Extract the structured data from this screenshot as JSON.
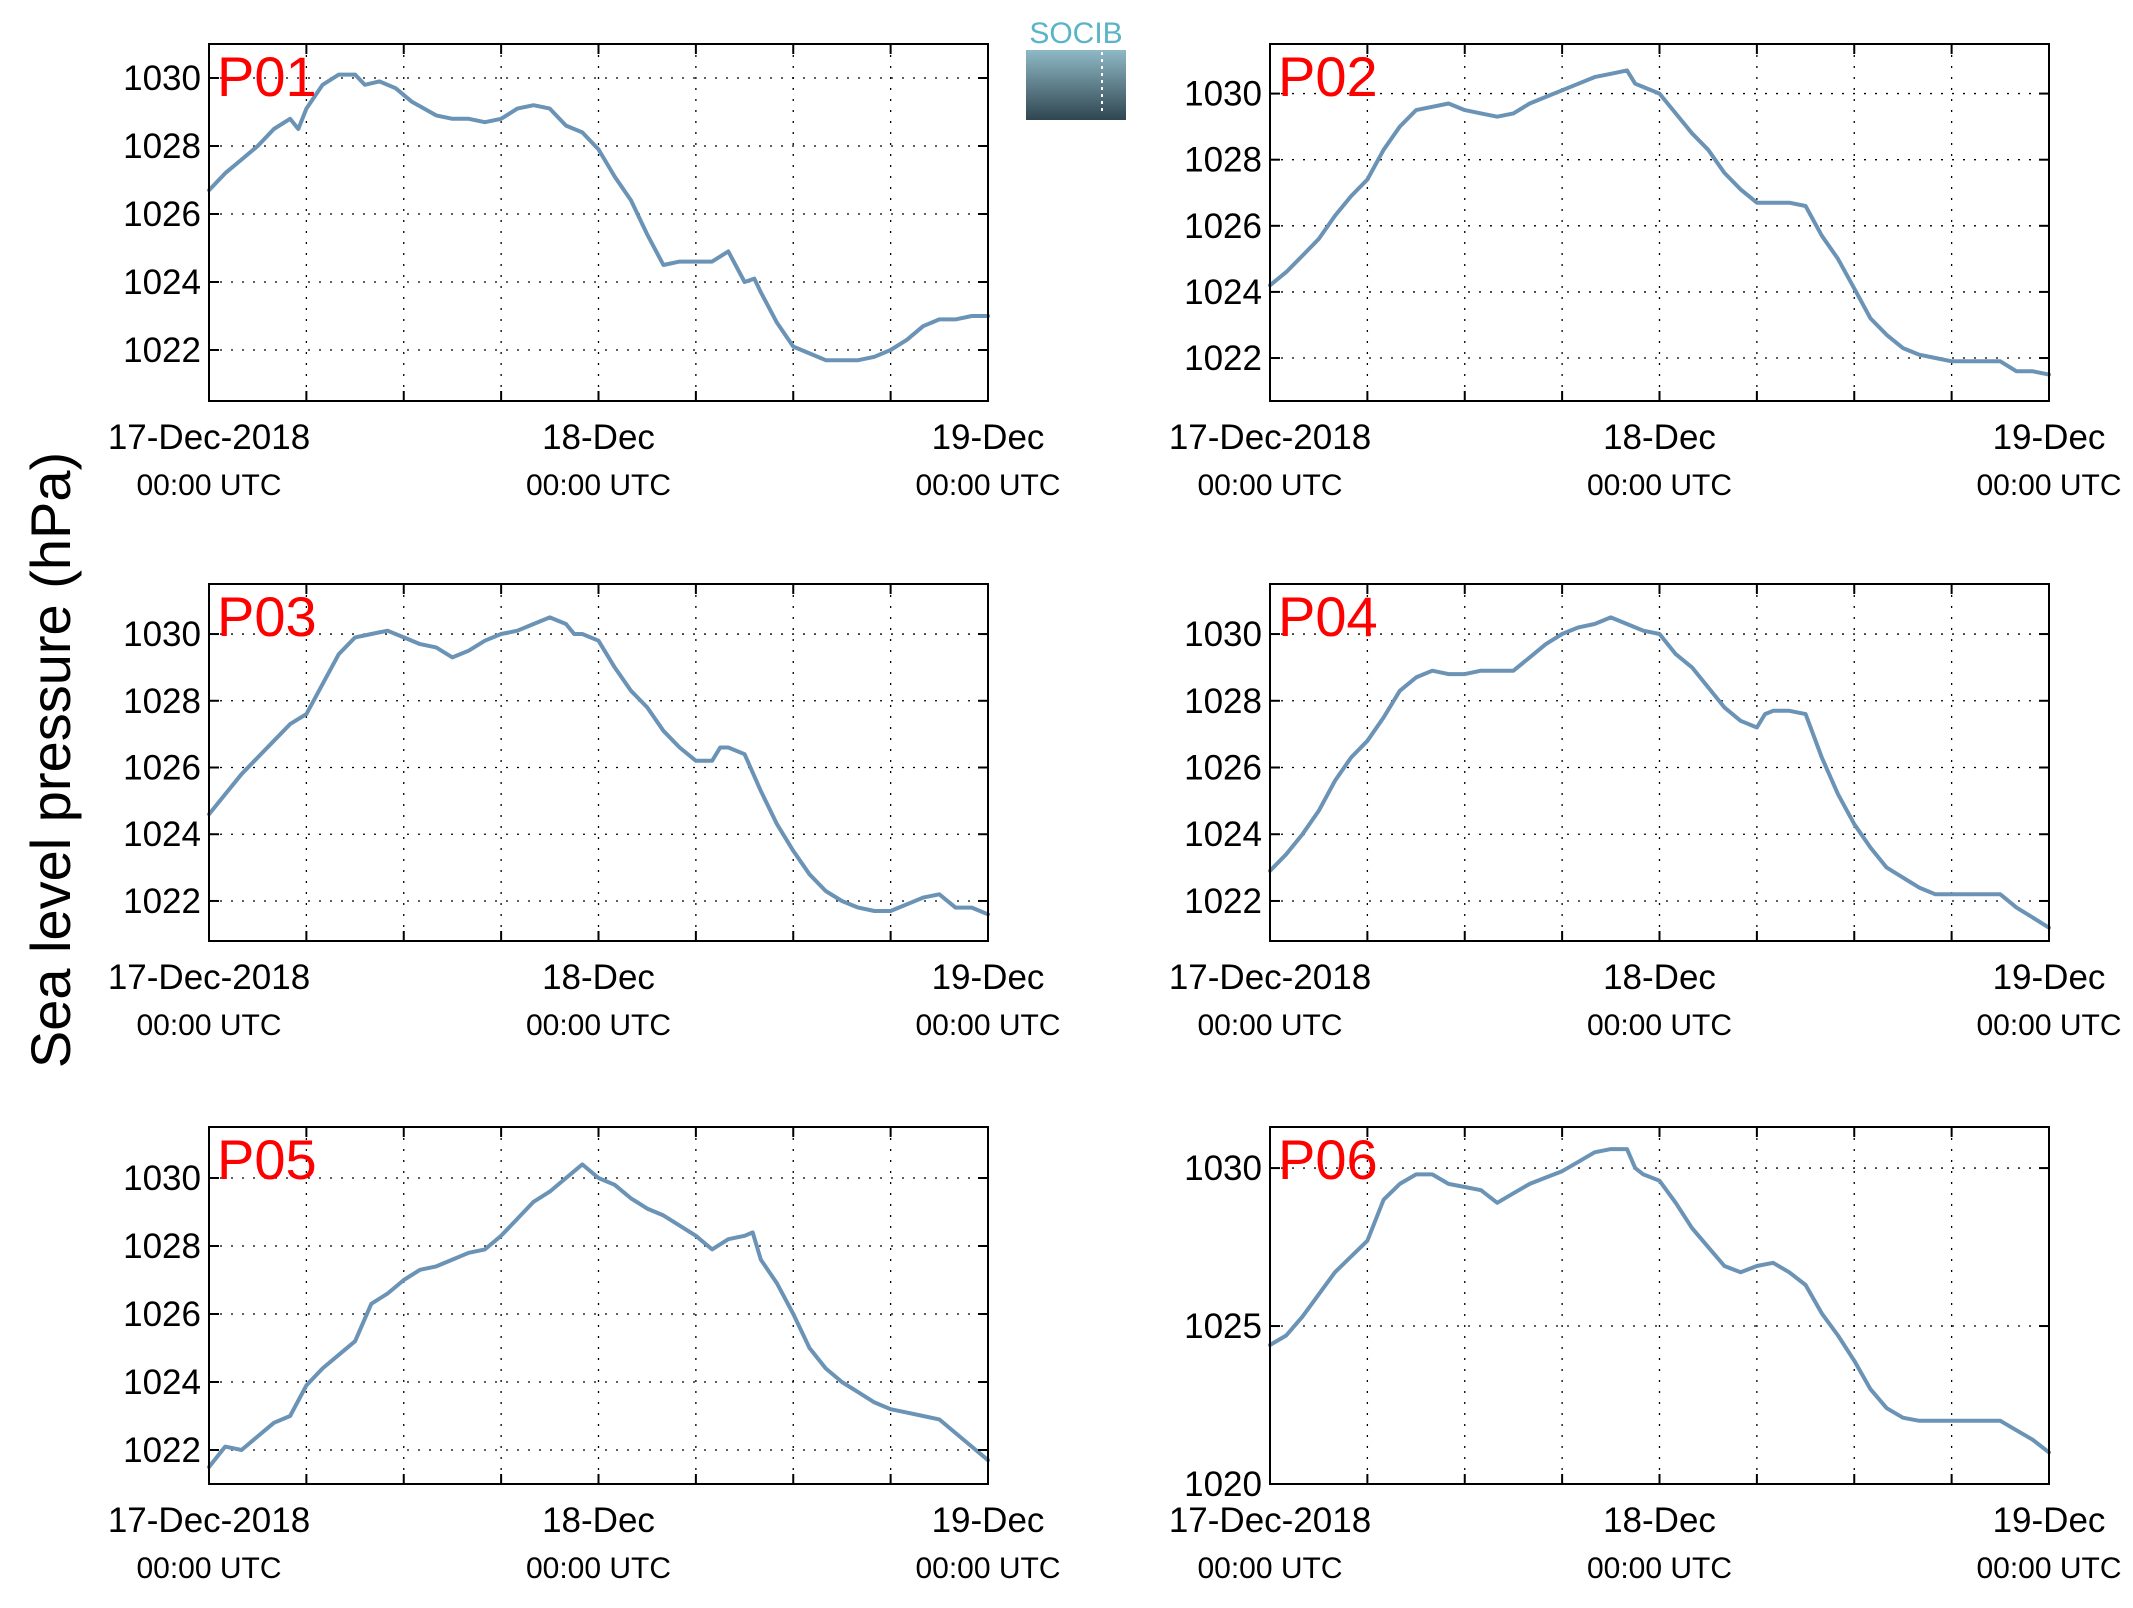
{
  "figure": {
    "ylabel": "Sea level pressure (hPa)",
    "logo_text": "SOCIB",
    "line_color": "#6b93b5",
    "panel_label_color": "#ff0000",
    "logo_top_color": "#5ab4c8",
    "logo_bottom_color": "#2f4650"
  },
  "chart_data": [
    {
      "type": "line",
      "title": "P01",
      "ylim": [
        1020.5,
        1031
      ],
      "yticks": [
        1022,
        1024,
        1026,
        1028,
        1030
      ],
      "xlim": [
        0,
        48
      ],
      "xticks": [
        {
          "x": 0,
          "label": "17-Dec-2018",
          "sublabel": "00:00 UTC"
        },
        {
          "x": 24,
          "label": "18-Dec",
          "sublabel": "00:00 UTC"
        },
        {
          "x": 48,
          "label": "19-Dec",
          "sublabel": "00:00 UTC"
        }
      ],
      "grid": true,
      "x": [
        0,
        1,
        2,
        3,
        4,
        5,
        5.5,
        6,
        7,
        8,
        9,
        9.6,
        10.5,
        11.5,
        12.5,
        14,
        15,
        16,
        17,
        18,
        19,
        20,
        21,
        22,
        23,
        24,
        25,
        26,
        27,
        28,
        29,
        30,
        31,
        32,
        33,
        33.6,
        34,
        35,
        36,
        37,
        38,
        39,
        40,
        41,
        42,
        43,
        44,
        45,
        46,
        47,
        48
      ],
      "y": [
        1026.7,
        1027.2,
        1027.6,
        1028.0,
        1028.5,
        1028.8,
        1028.5,
        1029.1,
        1029.8,
        1030.1,
        1030.1,
        1029.8,
        1029.9,
        1029.7,
        1029.3,
        1028.9,
        1028.8,
        1028.8,
        1028.7,
        1028.8,
        1029.1,
        1029.2,
        1029.1,
        1028.6,
        1028.4,
        1027.9,
        1027.1,
        1026.4,
        1025.4,
        1024.5,
        1024.6,
        1024.6,
        1024.6,
        1024.9,
        1024.0,
        1024.1,
        1023.7,
        1022.8,
        1022.1,
        1021.9,
        1021.7,
        1021.7,
        1021.7,
        1021.8,
        1022.0,
        1022.3,
        1022.7,
        1022.9,
        1022.9,
        1023.0,
        1023.0
      ]
    },
    {
      "type": "line",
      "title": "P02",
      "ylim": [
        1020.7,
        1031.5
      ],
      "yticks": [
        1022,
        1024,
        1026,
        1028,
        1030
      ],
      "xlim": [
        0,
        48
      ],
      "xticks": [
        {
          "x": 0,
          "label": "17-Dec-2018",
          "sublabel": "00:00 UTC"
        },
        {
          "x": 24,
          "label": "18-Dec",
          "sublabel": "00:00 UTC"
        },
        {
          "x": 48,
          "label": "19-Dec",
          "sublabel": "00:00 UTC"
        }
      ],
      "grid": true,
      "x": [
        0,
        1,
        2,
        3,
        4,
        5,
        6,
        7,
        8,
        9,
        10,
        11,
        12,
        13,
        14,
        15,
        16,
        17,
        18,
        19,
        20,
        21,
        22,
        22.5,
        23,
        24,
        25,
        26,
        27,
        28,
        29,
        30,
        31,
        32,
        33,
        34,
        35,
        36,
        37,
        38,
        39,
        40,
        41,
        42,
        43,
        44,
        45,
        46,
        47,
        48
      ],
      "y": [
        1024.2,
        1024.6,
        1025.1,
        1025.6,
        1026.3,
        1026.9,
        1027.4,
        1028.3,
        1029.0,
        1029.5,
        1029.6,
        1029.7,
        1029.5,
        1029.4,
        1029.3,
        1029.4,
        1029.7,
        1029.9,
        1030.1,
        1030.3,
        1030.5,
        1030.6,
        1030.7,
        1030.3,
        1030.2,
        1030.0,
        1029.4,
        1028.8,
        1028.3,
        1027.6,
        1027.1,
        1026.7,
        1026.7,
        1026.7,
        1026.6,
        1025.7,
        1025.0,
        1024.1,
        1023.2,
        1022.7,
        1022.3,
        1022.1,
        1022.0,
        1021.9,
        1021.9,
        1021.9,
        1021.9,
        1021.6,
        1021.6,
        1021.5
      ]
    },
    {
      "type": "line",
      "title": "P03",
      "ylim": [
        1020.8,
        1031.5
      ],
      "yticks": [
        1022,
        1024,
        1026,
        1028,
        1030
      ],
      "xlim": [
        0,
        48
      ],
      "xticks": [
        {
          "x": 0,
          "label": "17-Dec-2018",
          "sublabel": "00:00 UTC"
        },
        {
          "x": 24,
          "label": "18-Dec",
          "sublabel": "00:00 UTC"
        },
        {
          "x": 48,
          "label": "19-Dec",
          "sublabel": "00:00 UTC"
        }
      ],
      "grid": true,
      "x": [
        0,
        1,
        2,
        3,
        4,
        5,
        6,
        7,
        8,
        9,
        10,
        11,
        12,
        13,
        14,
        15,
        16,
        17,
        18,
        19,
        20,
        21,
        22,
        22.5,
        23,
        24,
        25,
        26,
        27,
        28,
        29,
        30,
        31,
        31.5,
        32,
        33,
        34,
        35,
        36,
        37,
        38,
        39,
        40,
        41,
        42,
        43,
        44,
        45,
        46,
        47,
        48
      ],
      "y": [
        1024.6,
        1025.2,
        1025.8,
        1026.3,
        1026.8,
        1027.3,
        1027.6,
        1028.5,
        1029.4,
        1029.9,
        1030.0,
        1030.1,
        1029.9,
        1029.7,
        1029.6,
        1029.3,
        1029.5,
        1029.8,
        1030.0,
        1030.1,
        1030.3,
        1030.5,
        1030.3,
        1030.0,
        1030.0,
        1029.8,
        1029.0,
        1028.3,
        1027.8,
        1027.1,
        1026.6,
        1026.2,
        1026.2,
        1026.6,
        1026.6,
        1026.4,
        1025.3,
        1024.3,
        1023.5,
        1022.8,
        1022.3,
        1022.0,
        1021.8,
        1021.7,
        1021.7,
        1021.9,
        1022.1,
        1022.2,
        1021.8,
        1021.8,
        1021.6
      ]
    },
    {
      "type": "line",
      "title": "P04",
      "ylim": [
        1020.8,
        1031.5
      ],
      "yticks": [
        1022,
        1024,
        1026,
        1028,
        1030
      ],
      "xlim": [
        0,
        48
      ],
      "xticks": [
        {
          "x": 0,
          "label": "17-Dec-2018",
          "sublabel": "00:00 UTC"
        },
        {
          "x": 24,
          "label": "18-Dec",
          "sublabel": "00:00 UTC"
        },
        {
          "x": 48,
          "label": "19-Dec",
          "sublabel": "00:00 UTC"
        }
      ],
      "grid": true,
      "x": [
        0,
        1,
        2,
        3,
        4,
        5,
        6,
        7,
        8,
        9,
        10,
        11,
        12,
        13,
        14,
        15,
        16,
        17,
        18,
        19,
        20,
        21,
        22,
        22.5,
        23,
        24,
        25,
        26,
        27,
        28,
        29,
        30,
        30.5,
        31,
        32,
        33,
        34,
        35,
        36,
        37,
        38,
        39,
        40,
        41,
        42,
        43,
        44,
        45,
        46,
        47,
        48
      ],
      "y": [
        1022.9,
        1023.4,
        1024.0,
        1024.7,
        1025.6,
        1026.3,
        1026.8,
        1027.5,
        1028.3,
        1028.7,
        1028.9,
        1028.8,
        1028.8,
        1028.9,
        1028.9,
        1028.9,
        1029.3,
        1029.7,
        1030.0,
        1030.2,
        1030.3,
        1030.5,
        1030.3,
        1030.2,
        1030.1,
        1030.0,
        1029.4,
        1029.0,
        1028.4,
        1027.8,
        1027.4,
        1027.2,
        1027.6,
        1027.7,
        1027.7,
        1027.6,
        1026.3,
        1025.2,
        1024.3,
        1023.6,
        1023.0,
        1022.7,
        1022.4,
        1022.2,
        1022.2,
        1022.2,
        1022.2,
        1022.2,
        1021.8,
        1021.5,
        1021.2
      ]
    },
    {
      "type": "line",
      "title": "P05",
      "ylim": [
        1021,
        1031.5
      ],
      "yticks": [
        1022,
        1024,
        1026,
        1028,
        1030
      ],
      "xlim": [
        0,
        48
      ],
      "xticks": [
        {
          "x": 0,
          "label": "17-Dec-2018",
          "sublabel": "00:00 UTC"
        },
        {
          "x": 24,
          "label": "18-Dec",
          "sublabel": "00:00 UTC"
        },
        {
          "x": 48,
          "label": "19-Dec",
          "sublabel": "00:00 UTC"
        }
      ],
      "grid": true,
      "x": [
        0,
        1,
        2,
        3,
        4,
        5,
        6,
        7,
        8,
        9,
        10,
        11,
        12,
        13,
        14,
        15,
        16,
        17,
        18,
        19,
        20,
        21,
        22,
        22.5,
        23,
        24,
        25,
        26,
        27,
        28,
        29,
        30,
        30.5,
        31,
        32,
        33,
        33.5,
        34,
        35,
        36,
        37,
        38,
        39,
        40,
        41,
        42,
        43,
        44,
        45,
        46,
        47,
        48
      ],
      "y": [
        1021.5,
        1022.1,
        1022.0,
        1022.4,
        1022.8,
        1023.0,
        1023.9,
        1024.4,
        1024.8,
        1025.2,
        1026.3,
        1026.6,
        1027.0,
        1027.3,
        1027.4,
        1027.6,
        1027.8,
        1027.9,
        1028.3,
        1028.8,
        1029.3,
        1029.6,
        1030.0,
        1030.2,
        1030.4,
        1030.0,
        1029.8,
        1029.4,
        1029.1,
        1028.9,
        1028.6,
        1028.3,
        1028.1,
        1027.9,
        1028.2,
        1028.3,
        1028.4,
        1027.6,
        1026.9,
        1026.0,
        1025.0,
        1024.4,
        1024.0,
        1023.7,
        1023.4,
        1023.2,
        1023.1,
        1023.0,
        1022.9,
        1022.5,
        1022.1,
        1021.7
      ]
    },
    {
      "type": "line",
      "title": "P06",
      "ylim": [
        1020,
        1031.3
      ],
      "yticks": [
        1020,
        1025,
        1030
      ],
      "xlim": [
        0,
        48
      ],
      "xticks": [
        {
          "x": 0,
          "label": "17-Dec-2018",
          "sublabel": "00:00 UTC"
        },
        {
          "x": 24,
          "label": "18-Dec",
          "sublabel": "00:00 UTC"
        },
        {
          "x": 48,
          "label": "19-Dec",
          "sublabel": "00:00 UTC"
        }
      ],
      "grid": true,
      "x": [
        0,
        1,
        2,
        3,
        4,
        5,
        6,
        7,
        8,
        9,
        10,
        11,
        12,
        13,
        14,
        15,
        16,
        17,
        18,
        19,
        20,
        21,
        22,
        22.5,
        23,
        24,
        25,
        26,
        27,
        28,
        29,
        30,
        31,
        32,
        33,
        34,
        35,
        36,
        37,
        38,
        39,
        40,
        41,
        42,
        43,
        44,
        45,
        46,
        47,
        48
      ],
      "y": [
        1024.4,
        1024.7,
        1025.3,
        1026.0,
        1026.7,
        1027.2,
        1027.7,
        1029.0,
        1029.5,
        1029.8,
        1029.8,
        1029.5,
        1029.4,
        1029.3,
        1028.9,
        1029.2,
        1029.5,
        1029.7,
        1029.9,
        1030.2,
        1030.5,
        1030.6,
        1030.6,
        1030.0,
        1029.8,
        1029.6,
        1028.9,
        1028.1,
        1027.5,
        1026.9,
        1026.7,
        1026.9,
        1027.0,
        1026.7,
        1026.3,
        1025.4,
        1024.7,
        1023.9,
        1023.0,
        1022.4,
        1022.1,
        1022.0,
        1022.0,
        1022.0,
        1022.0,
        1022.0,
        1022.0,
        1021.7,
        1021.4,
        1021.0
      ]
    }
  ]
}
